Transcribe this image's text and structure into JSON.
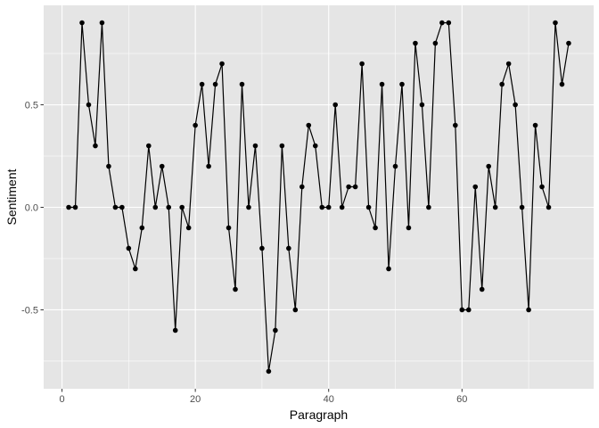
{
  "chart_data": {
    "type": "line",
    "title": "",
    "xlabel": "Paragraph",
    "ylabel": "Sentiment",
    "xlim": [
      -2.75,
      79.75
    ],
    "ylim": [
      -0.885,
      0.985
    ],
    "x_ticks": [
      0,
      20,
      40,
      60
    ],
    "y_ticks": [
      -0.5,
      0.0,
      0.5
    ],
    "x_tick_labels": [
      "0",
      "20",
      "40",
      "60"
    ],
    "y_tick_labels": [
      "-0.5",
      "0.0",
      "0.5"
    ],
    "grid": true,
    "legend": "none",
    "colors": {
      "panel": "#e5e5e5",
      "grid": "#ffffff",
      "line": "#000000",
      "point": "#000000",
      "tick": "#333333"
    },
    "x": [
      1,
      2,
      3,
      4,
      5,
      6,
      7,
      8,
      9,
      10,
      11,
      12,
      13,
      14,
      15,
      16,
      17,
      18,
      19,
      20,
      21,
      22,
      23,
      24,
      25,
      26,
      27,
      28,
      29,
      30,
      31,
      32,
      33,
      34,
      35,
      36,
      37,
      38,
      39,
      40,
      41,
      42,
      43,
      44,
      45,
      46,
      47,
      48,
      49,
      50,
      51,
      52,
      53,
      54,
      55,
      56,
      57,
      58,
      59,
      60,
      61,
      62,
      63,
      64,
      65,
      66,
      67,
      68,
      69,
      70,
      71,
      72,
      73,
      74,
      75,
      76
    ],
    "y": [
      0.0,
      0.0,
      0.9,
      0.5,
      0.3,
      0.9,
      0.2,
      0.0,
      0.0,
      -0.2,
      -0.3,
      -0.1,
      0.3,
      0.0,
      0.2,
      0.0,
      -0.6,
      0.0,
      -0.1,
      0.4,
      0.6,
      0.2,
      0.6,
      0.7,
      -0.1,
      -0.4,
      0.6,
      0.0,
      0.3,
      -0.2,
      -0.8,
      -0.6,
      0.3,
      -0.2,
      -0.5,
      0.1,
      0.4,
      0.3,
      0.0,
      0.0,
      0.5,
      0.0,
      0.1,
      0.1,
      0.7,
      0.0,
      -0.1,
      0.6,
      -0.3,
      0.2,
      0.6,
      -0.1,
      0.8,
      0.5,
      0.0,
      0.8,
      0.9,
      0.9,
      0.4,
      -0.5,
      -0.5,
      0.1,
      -0.4,
      0.2,
      0.0,
      0.6,
      0.7,
      0.5,
      0.0,
      -0.5,
      0.4,
      0.1,
      0.0,
      0.9,
      0.6,
      0.8
    ]
  }
}
